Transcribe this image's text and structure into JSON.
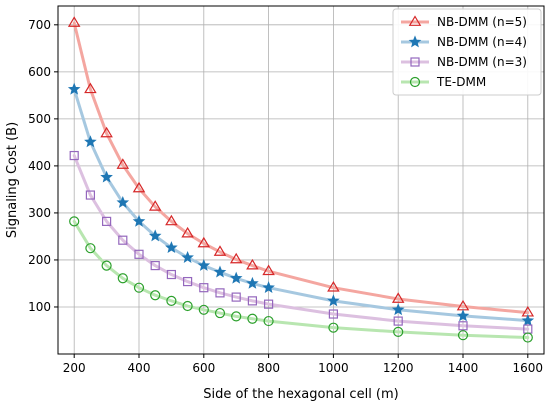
{
  "chart_data": {
    "type": "line",
    "title": "",
    "xlabel": "Side of the hexagonal cell (m)",
    "ylabel": "Signaling Cost (B)",
    "xlim": [
      150,
      1650
    ],
    "ylim": [
      0,
      740
    ],
    "xticks": [
      200,
      400,
      600,
      800,
      1000,
      1200,
      1400,
      1600
    ],
    "yticks": [
      100,
      200,
      300,
      400,
      500,
      600,
      700
    ],
    "grid": true,
    "legend_position": "top-right",
    "x": [
      200,
      250,
      300,
      350,
      400,
      450,
      500,
      550,
      600,
      650,
      700,
      750,
      800,
      1000,
      1200,
      1400,
      1600
    ],
    "series": [
      {
        "name": "NB-DMM (n=5)",
        "marker": "triangle",
        "line_color": "#f4a6a0",
        "marker_color": "#d62728",
        "values": [
          704,
          563,
          469,
          402,
          352,
          313,
          282,
          256,
          235,
          217,
          201,
          188,
          176,
          141,
          117,
          101,
          88
        ]
      },
      {
        "name": "NB-DMM (n=4)",
        "marker": "star",
        "line_color": "#a6c8e0",
        "marker_color": "#1f77b4",
        "values": [
          563,
          451,
          376,
          322,
          282,
          251,
          226,
          205,
          188,
          174,
          161,
          150,
          141,
          113,
          94,
          81,
          71
        ]
      },
      {
        "name": "NB-DMM (n=3)",
        "marker": "square",
        "line_color": "#dcc0e0",
        "marker_color": "#9467bd",
        "values": [
          422,
          338,
          282,
          242,
          212,
          188,
          169,
          154,
          141,
          130,
          121,
          113,
          106,
          85,
          70,
          60,
          53
        ]
      },
      {
        "name": "TE-DMM",
        "marker": "circle",
        "line_color": "#b8e6b0",
        "marker_color": "#2ca02c",
        "values": [
          282,
          225,
          188,
          161,
          141,
          125,
          113,
          102,
          94,
          87,
          80,
          75,
          70,
          56,
          47,
          40,
          35
        ]
      }
    ]
  }
}
